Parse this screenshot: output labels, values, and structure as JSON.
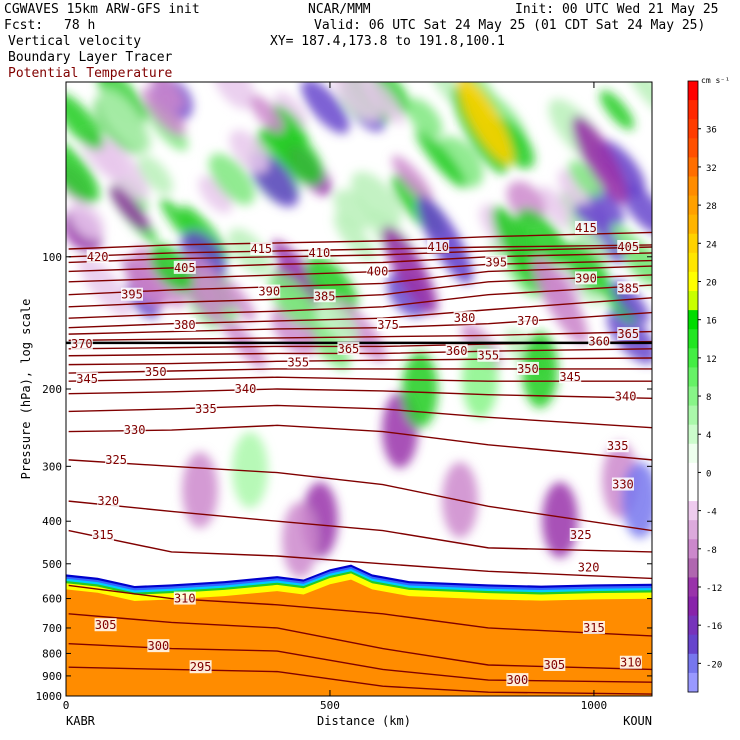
{
  "header": {
    "model_line": "CGWAVES 15km ARW-GFS init",
    "org": "NCAR/MMM",
    "init": "Init: 00 UTC Wed 21 May 25",
    "fcst_label": "Fcst:",
    "fcst_value": "78 h",
    "valid": "Valid: 06 UTC Sat 24 May 25 (01 CDT Sat 24 May 25)",
    "field1": "Vertical velocity",
    "xy": "XY= 187.4,173.8 to 191.8,100.1",
    "field2": "Boundary Layer Tracer",
    "field3": "Potential Temperature"
  },
  "colors": {
    "theta_line": "#800000",
    "theta_label_text": "#800000",
    "terrain": "#ff8c00"
  },
  "chart_data": {
    "type": "heatmap",
    "ylabel": "Pressure (hPa), log scale",
    "xlabel": "Distance (km)",
    "x_ticks": [
      0,
      500,
      1000
    ],
    "xlim": [
      0,
      1110
    ],
    "y_ticks": [
      100,
      200,
      300,
      400,
      500,
      600,
      700,
      800,
      900,
      1000
    ],
    "ylim": [
      1000,
      40
    ],
    "y_scale": "log",
    "left_station": "KABR",
    "right_station": "KOUN",
    "colorbar": {
      "units": "cm s⁻¹",
      "levels": [
        40,
        38,
        36,
        34,
        32,
        30,
        28,
        26,
        24,
        22,
        20,
        18,
        16,
        14,
        12,
        10,
        8,
        6,
        4,
        2,
        0,
        -2,
        -4,
        -6,
        -8,
        -10,
        -12,
        -14,
        -16,
        -18,
        -20,
        -22
      ],
      "tick_labels": [
        "36",
        "32",
        "28",
        "24",
        "20",
        "16",
        "12",
        "8",
        "4",
        "0",
        "-4",
        "-8",
        "-12",
        "-16",
        "-20"
      ],
      "tick_values": [
        36,
        32,
        28,
        24,
        20,
        16,
        12,
        8,
        4,
        0,
        -4,
        -8,
        -12,
        -16,
        -20
      ],
      "colors": [
        "#ff0000",
        "#ff2800",
        "#ff3c00",
        "#ff5000",
        "#ff6e00",
        "#ff8c00",
        "#ffa000",
        "#ffb400",
        "#ffd200",
        "#ffe600",
        "#ffff00",
        "#c8ff00",
        "#00dd00",
        "#22e622",
        "#44ee44",
        "#66f266",
        "#88f588",
        "#aaf8aa",
        "#ccfccc",
        "#eeffee",
        "#ffffff",
        "#ffffff",
        "#eecbee",
        "#dcaadc",
        "#cc88cc",
        "#b066b0",
        "#9933aa",
        "#8822aa",
        "#7733bb",
        "#6644cc",
        "#7777ee",
        "#9999ff"
      ]
    },
    "theta_contours": [
      {
        "label": "420",
        "points": [
          [
            5,
            100
          ],
          [
            200,
            98
          ],
          [
            400,
            97
          ],
          [
            600,
            96
          ],
          [
            800,
            95
          ],
          [
            1110,
            94
          ]
        ]
      },
      {
        "label": "415",
        "points": [
          [
            5,
            96
          ],
          [
            200,
            94
          ],
          [
            400,
            93
          ],
          [
            600,
            92
          ],
          [
            800,
            90
          ],
          [
            1110,
            88
          ]
        ]
      },
      {
        "label": "410",
        "points": [
          [
            5,
            103
          ],
          [
            200,
            101
          ],
          [
            400,
            100
          ],
          [
            600,
            99
          ],
          [
            800,
            97
          ],
          [
            1110,
            95
          ]
        ]
      },
      {
        "label": "405",
        "points": [
          [
            5,
            108
          ],
          [
            200,
            106
          ],
          [
            400,
            104
          ],
          [
            600,
            103
          ],
          [
            800,
            100
          ],
          [
            1110,
            98
          ]
        ]
      },
      {
        "label": "400",
        "points": [
          [
            5,
            114
          ],
          [
            200,
            112
          ],
          [
            400,
            110
          ],
          [
            600,
            108
          ],
          [
            800,
            104
          ],
          [
            1110,
            102
          ]
        ]
      },
      {
        "label": "395",
        "points": [
          [
            5,
            122
          ],
          [
            200,
            119
          ],
          [
            400,
            117
          ],
          [
            600,
            115
          ],
          [
            800,
            108
          ],
          [
            1110,
            105
          ]
        ]
      },
      {
        "label": "390",
        "points": [
          [
            5,
            130
          ],
          [
            200,
            127
          ],
          [
            400,
            125
          ],
          [
            600,
            122
          ],
          [
            800,
            114
          ],
          [
            1110,
            110
          ]
        ]
      },
      {
        "label": "385",
        "points": [
          [
            5,
            138
          ],
          [
            200,
            135
          ],
          [
            400,
            133
          ],
          [
            600,
            130
          ],
          [
            800,
            122
          ],
          [
            1110,
            116
          ]
        ]
      },
      {
        "label": "380",
        "points": [
          [
            5,
            145
          ],
          [
            200,
            142
          ],
          [
            400,
            140
          ],
          [
            600,
            138
          ],
          [
            800,
            132
          ],
          [
            1110,
            124
          ]
        ]
      },
      {
        "label": "375",
        "points": [
          [
            5,
            150
          ],
          [
            200,
            148
          ],
          [
            400,
            146
          ],
          [
            600,
            145
          ],
          [
            800,
            142
          ],
          [
            1110,
            134
          ]
        ]
      },
      {
        "label": "370",
        "points": [
          [
            5,
            155
          ],
          [
            200,
            154
          ],
          [
            400,
            153
          ],
          [
            600,
            152
          ],
          [
            800,
            151
          ],
          [
            1110,
            148
          ]
        ]
      },
      {
        "label": "365",
        "points": [
          [
            5,
            162
          ],
          [
            200,
            161
          ],
          [
            400,
            160
          ],
          [
            600,
            160
          ],
          [
            800,
            158
          ],
          [
            1110,
            156
          ]
        ]
      },
      {
        "label": "360",
        "points": [
          [
            5,
            168
          ],
          [
            200,
            167
          ],
          [
            400,
            166
          ],
          [
            600,
            166
          ],
          [
            800,
            164
          ],
          [
            1110,
            162
          ]
        ]
      },
      {
        "label": "355",
        "points": [
          [
            5,
            176
          ],
          [
            200,
            175
          ],
          [
            400,
            173
          ],
          [
            600,
            172
          ],
          [
            800,
            171
          ],
          [
            1110,
            170
          ]
        ]
      },
      {
        "label": "350",
        "points": [
          [
            5,
            184
          ],
          [
            200,
            182
          ],
          [
            400,
            180
          ],
          [
            600,
            180
          ],
          [
            800,
            180
          ],
          [
            1110,
            180
          ]
        ]
      },
      {
        "label": "345",
        "points": [
          [
            5,
            192
          ],
          [
            200,
            190
          ],
          [
            400,
            188
          ],
          [
            600,
            190
          ],
          [
            800,
            192
          ],
          [
            1110,
            192
          ]
        ]
      },
      {
        "label": "340",
        "points": [
          [
            5,
            205
          ],
          [
            200,
            203
          ],
          [
            400,
            200
          ],
          [
            600,
            202
          ],
          [
            800,
            206
          ],
          [
            1110,
            210
          ]
        ]
      },
      {
        "label": "335",
        "points": [
          [
            5,
            225
          ],
          [
            200,
            222
          ],
          [
            400,
            218
          ],
          [
            600,
            222
          ],
          [
            800,
            232
          ],
          [
            1110,
            245
          ]
        ]
      },
      {
        "label": "330",
        "points": [
          [
            5,
            250
          ],
          [
            200,
            248
          ],
          [
            400,
            242
          ],
          [
            600,
            250
          ],
          [
            800,
            268
          ],
          [
            1110,
            290
          ]
        ]
      },
      {
        "label": "325",
        "points": [
          [
            5,
            290
          ],
          [
            200,
            300
          ],
          [
            400,
            310
          ],
          [
            600,
            330
          ],
          [
            800,
            370
          ],
          [
            1110,
            420
          ]
        ]
      },
      {
        "label": "320",
        "points": [
          [
            5,
            360
          ],
          [
            200,
            380
          ],
          [
            400,
            400
          ],
          [
            600,
            420
          ],
          [
            800,
            460
          ],
          [
            1110,
            470
          ]
        ]
      },
      {
        "label": "315",
        "points": [
          [
            5,
            420
          ],
          [
            200,
            470
          ],
          [
            400,
            480
          ],
          [
            600,
            500
          ],
          [
            800,
            520
          ],
          [
            1110,
            540
          ]
        ]
      },
      {
        "label": "310",
        "points": [
          [
            5,
            560
          ],
          [
            200,
            600
          ],
          [
            400,
            620
          ],
          [
            600,
            650
          ],
          [
            800,
            700
          ],
          [
            1110,
            730
          ]
        ]
      },
      {
        "label": "305",
        "points": [
          [
            5,
            650
          ],
          [
            200,
            680
          ],
          [
            400,
            700
          ],
          [
            600,
            780
          ],
          [
            800,
            850
          ],
          [
            1110,
            870
          ]
        ]
      },
      {
        "label": "300",
        "points": [
          [
            5,
            760
          ],
          [
            200,
            780
          ],
          [
            400,
            790
          ],
          [
            600,
            870
          ],
          [
            800,
            920
          ],
          [
            1110,
            930
          ]
        ]
      },
      {
        "label": "295",
        "points": [
          [
            5,
            860
          ],
          [
            200,
            870
          ],
          [
            400,
            880
          ],
          [
            600,
            950
          ],
          [
            800,
            980
          ],
          [
            1110,
            990
          ]
        ]
      }
    ],
    "contour_labels": [
      {
        "text": "420",
        "x": 60,
        "p": 100
      },
      {
        "text": "415",
        "x": 370,
        "p": 96
      },
      {
        "text": "410",
        "x": 480,
        "p": 98
      },
      {
        "text": "410",
        "x": 705,
        "p": 95
      },
      {
        "text": "415",
        "x": 985,
        "p": 86
      },
      {
        "text": "405",
        "x": 225,
        "p": 106
      },
      {
        "text": "400",
        "x": 590,
        "p": 108
      },
      {
        "text": "395",
        "x": 815,
        "p": 103
      },
      {
        "text": "405",
        "x": 1065,
        "p": 95
      },
      {
        "text": "395",
        "x": 125,
        "p": 122
      },
      {
        "text": "390",
        "x": 385,
        "p": 120
      },
      {
        "text": "385",
        "x": 490,
        "p": 123
      },
      {
        "text": "390",
        "x": 985,
        "p": 112
      },
      {
        "text": "385",
        "x": 1065,
        "p": 118
      },
      {
        "text": "380",
        "x": 225,
        "p": 143
      },
      {
        "text": "375",
        "x": 610,
        "p": 143
      },
      {
        "text": "380",
        "x": 755,
        "p": 138
      },
      {
        "text": "370",
        "x": 875,
        "p": 140
      },
      {
        "text": "365",
        "x": 1065,
        "p": 150
      },
      {
        "text": "370",
        "x": 30,
        "p": 158
      },
      {
        "text": "360",
        "x": 1010,
        "p": 156
      },
      {
        "text": "365",
        "x": 535,
        "p": 162
      },
      {
        "text": "360",
        "x": 740,
        "p": 164
      },
      {
        "text": "355",
        "x": 800,
        "p": 168
      },
      {
        "text": "355",
        "x": 440,
        "p": 174
      },
      {
        "text": "350",
        "x": 875,
        "p": 180
      },
      {
        "text": "345",
        "x": 40,
        "p": 190
      },
      {
        "text": "350",
        "x": 170,
        "p": 183
      },
      {
        "text": "345",
        "x": 955,
        "p": 188
      },
      {
        "text": "340",
        "x": 340,
        "p": 200
      },
      {
        "text": "340",
        "x": 1060,
        "p": 208
      },
      {
        "text": "335",
        "x": 265,
        "p": 222
      },
      {
        "text": "330",
        "x": 130,
        "p": 248
      },
      {
        "text": "335",
        "x": 1045,
        "p": 270
      },
      {
        "text": "325",
        "x": 95,
        "p": 290
      },
      {
        "text": "330",
        "x": 1055,
        "p": 330
      },
      {
        "text": "320",
        "x": 80,
        "p": 360
      },
      {
        "text": "325",
        "x": 975,
        "p": 430
      },
      {
        "text": "315",
        "x": 70,
        "p": 430
      },
      {
        "text": "320",
        "x": 990,
        "p": 510
      },
      {
        "text": "310",
        "x": 225,
        "p": 600
      },
      {
        "text": "315",
        "x": 1000,
        "p": 700
      },
      {
        "text": "305",
        "x": 75,
        "p": 690
      },
      {
        "text": "300",
        "x": 175,
        "p": 770
      },
      {
        "text": "310",
        "x": 1070,
        "p": 840
      },
      {
        "text": "305",
        "x": 925,
        "p": 850
      },
      {
        "text": "295",
        "x": 255,
        "p": 860
      },
      {
        "text": "300",
        "x": 855,
        "p": 920
      }
    ]
  }
}
